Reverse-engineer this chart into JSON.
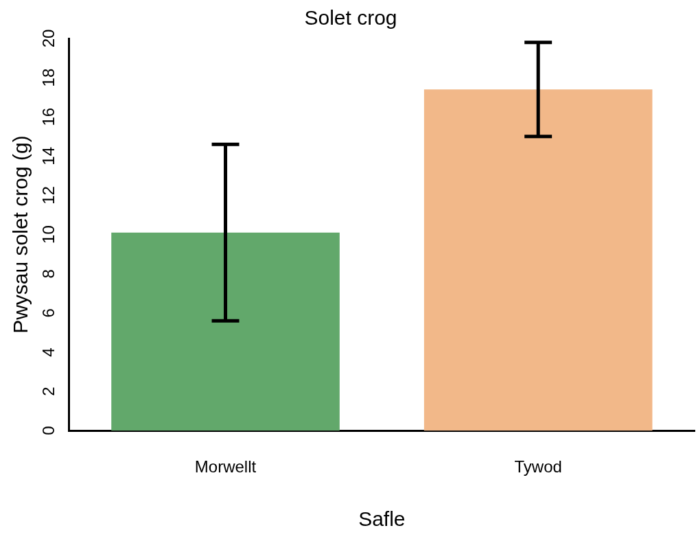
{
  "chart_data": {
    "type": "bar",
    "title": "Solet crog",
    "xlabel": "Safle",
    "ylabel": "Pwysau solet crog (g)",
    "categories": [
      "Morwellt",
      "Tywod"
    ],
    "values": [
      10.1,
      17.4
    ],
    "colors": [
      "#62a86b",
      "#f2b889"
    ],
    "errors": [
      4.5,
      2.4
    ],
    "ylim": [
      0,
      20
    ],
    "yticks": [
      0,
      2,
      4,
      6,
      8,
      10,
      12,
      14,
      16,
      18,
      20
    ],
    "grid": false,
    "legend": false
  }
}
